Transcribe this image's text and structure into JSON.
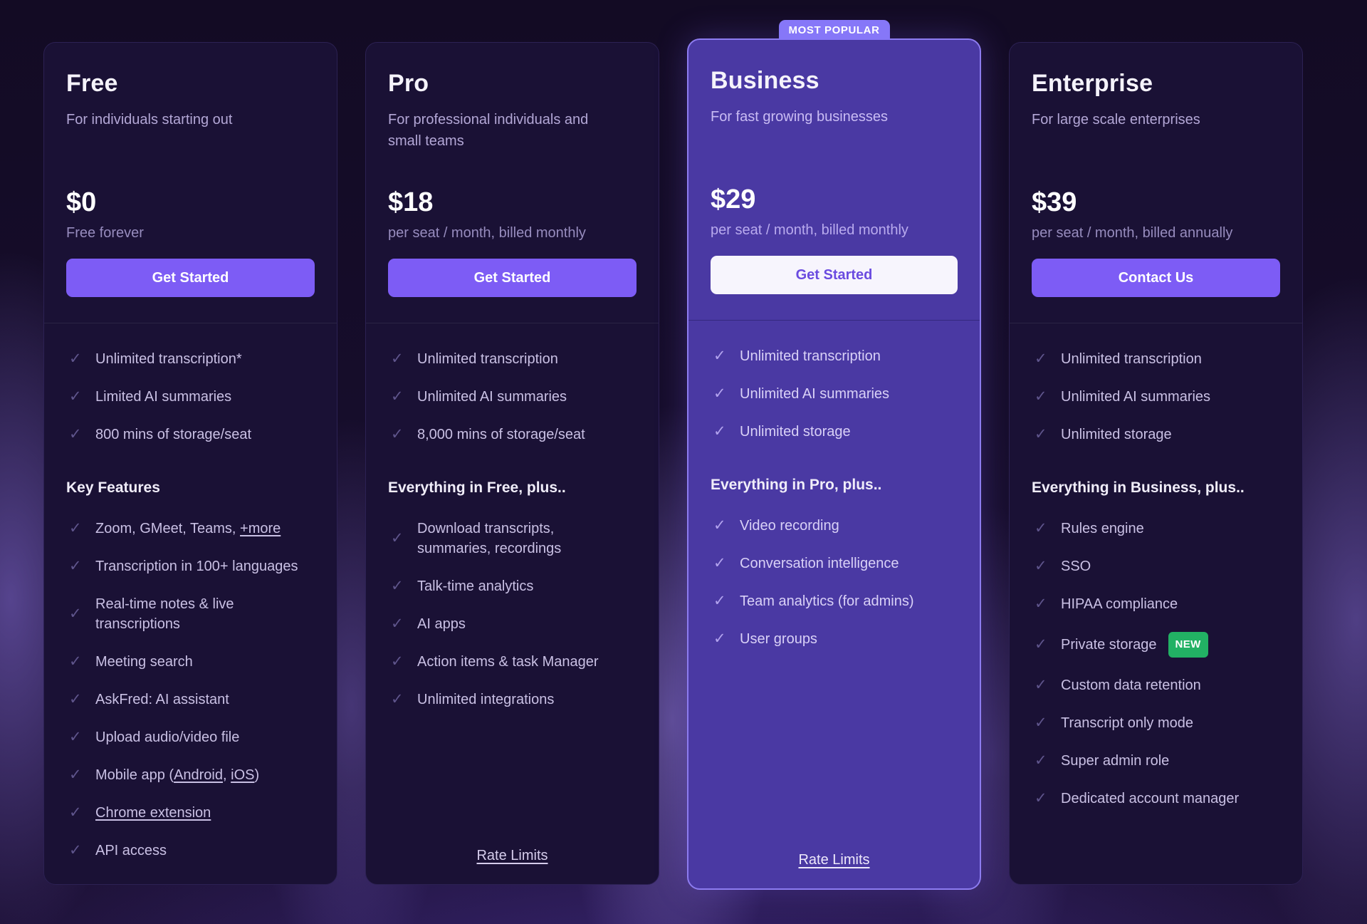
{
  "badges": {
    "most_popular": "MOST POPULAR",
    "new": "NEW"
  },
  "colors": {
    "accent_purple": "#7d5cf5",
    "highlight_card_bg": "#4a39a3",
    "highlight_border": "#8d7cf0",
    "popular_badge_bg": "#8677f8",
    "new_badge_green": "#22b164",
    "dark_card_bg": "#1a1135",
    "business_button_bg": "#f7f5fd"
  },
  "cards": [
    {
      "name": "Free",
      "description": "For individuals starting out",
      "price": "$0",
      "price_note": "Free forever",
      "cta": "Get Started",
      "included": [
        "Unlimited transcription*",
        "Limited AI summaries",
        "800 mins of storage/seat"
      ],
      "section_title": "Key Features",
      "features": [
        {
          "pre": "Zoom, GMeet, Teams, ",
          "link": "+more"
        },
        {
          "text": "Transcription in 100+ languages"
        },
        {
          "text": "Real-time notes & live\ntranscriptions"
        },
        {
          "text": "Meeting search"
        },
        {
          "text": "AskFred: AI assistant"
        },
        {
          "text": "Upload audio/video file"
        },
        {
          "pre": "Mobile app (",
          "link": "Android",
          "mid": ", ",
          "link2": "iOS",
          "post": ")"
        },
        {
          "link": "Chrome extension"
        },
        {
          "text": "API access"
        }
      ]
    },
    {
      "name": "Pro",
      "description": "For professional individuals and\nsmall teams",
      "price": "$18",
      "price_note": "per seat / month, billed monthly",
      "cta": "Get Started",
      "included": [
        "Unlimited transcription",
        "Unlimited AI summaries",
        "8,000 mins of storage/seat"
      ],
      "section_title": "Everything in Free, plus..",
      "features": [
        {
          "text": "Download transcripts,\nsummaries, recordings"
        },
        {
          "text": "Talk-time analytics"
        },
        {
          "text": "AI apps"
        },
        {
          "text": "Action items & task Manager"
        },
        {
          "text": "Unlimited integrations"
        }
      ],
      "footer_link": "Rate Limits"
    },
    {
      "name": "Business",
      "description": "For fast growing businesses",
      "price": "$29",
      "price_note": "per seat / month, billed monthly",
      "cta": "Get Started",
      "included": [
        "Unlimited transcription",
        "Unlimited AI summaries",
        "Unlimited storage"
      ],
      "section_title": "Everything in Pro, plus..",
      "features": [
        {
          "text": "Video recording"
        },
        {
          "text": "Conversation intelligence"
        },
        {
          "text": "Team analytics (for admins)"
        },
        {
          "text": "User groups"
        }
      ],
      "footer_link": "Rate Limits"
    },
    {
      "name": "Enterprise",
      "description": "For large scale enterprises",
      "price": "$39",
      "price_note": "per seat / month, billed annually",
      "cta": "Contact Us",
      "included": [
        "Unlimited transcription",
        "Unlimited AI summaries",
        "Unlimited storage"
      ],
      "section_title": "Everything in Business, plus..",
      "features": [
        {
          "text": "Rules engine"
        },
        {
          "text": "SSO"
        },
        {
          "text": "HIPAA compliance"
        },
        {
          "text": "Private storage",
          "badge": "NEW"
        },
        {
          "text": "Custom data retention"
        },
        {
          "text": "Transcript only mode"
        },
        {
          "text": "Super admin role"
        },
        {
          "text": "Dedicated account manager"
        }
      ]
    }
  ]
}
